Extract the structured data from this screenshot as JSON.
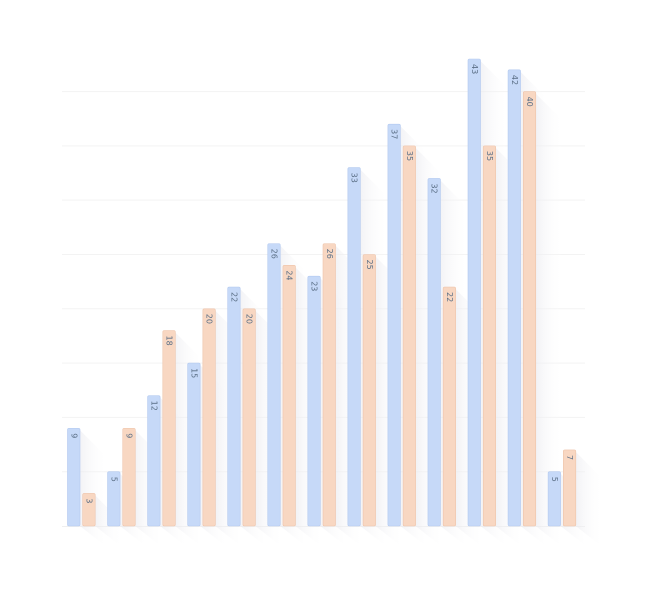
{
  "chart_data": {
    "type": "bar",
    "title": "",
    "xlabel": "",
    "ylabel": "",
    "categories": [
      "",
      "",
      "",
      "",
      "",
      "",
      "",
      "",
      "",
      "",
      "",
      "",
      ""
    ],
    "series": [
      {
        "values": [
          9,
          5,
          12,
          15,
          22,
          26,
          23,
          33,
          37,
          32,
          43,
          42,
          5
        ],
        "color": "#c6d9f8"
      },
      {
        "values": [
          3,
          9,
          18,
          20,
          20,
          24,
          26,
          25,
          35,
          22,
          35,
          40,
          7
        ],
        "color": "#f8d7c2"
      }
    ],
    "ylim": [
      0,
      44
    ],
    "grid": true,
    "legend": "none"
  }
}
